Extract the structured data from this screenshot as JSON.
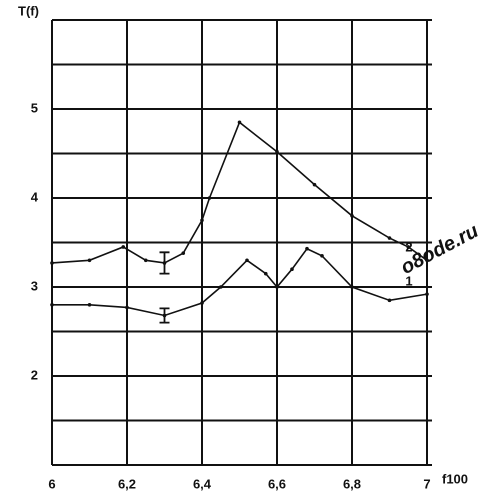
{
  "chart_data": {
    "type": "line",
    "y_label": "T(f)",
    "x_label": "f100",
    "watermark": "o8ode.ru",
    "xlim": [
      6,
      7
    ],
    "ylim": [
      1,
      6
    ],
    "xticks": [
      {
        "value": 6,
        "label": "6"
      },
      {
        "value": 6.2,
        "label": "6,2"
      },
      {
        "value": 6.4,
        "label": "6,4"
      },
      {
        "value": 6.6,
        "label": "6,6"
      },
      {
        "value": 6.8,
        "label": "6,8"
      },
      {
        "value": 7,
        "label": "7"
      }
    ],
    "yticks": [
      2,
      3,
      4,
      5
    ],
    "y_minor_ticks": [
      1.5,
      2.5,
      3.5,
      4.5,
      5.5,
      6
    ],
    "grid": true,
    "series": [
      {
        "name": "1",
        "color": "#111111",
        "x": [
          6,
          6.1,
          6.2,
          6.3,
          6.4,
          6.45,
          6.52,
          6.57,
          6.6,
          6.64,
          6.68,
          6.72,
          6.8,
          6.9,
          7
        ],
        "values": [
          2.8,
          2.8,
          2.77,
          2.68,
          2.82,
          3.0,
          3.3,
          3.15,
          3.0,
          3.2,
          3.43,
          3.35,
          3.0,
          2.85,
          2.92
        ],
        "errors": [
          null,
          null,
          null,
          0.08,
          null,
          null,
          null,
          null,
          null,
          null,
          null,
          null,
          null,
          null,
          null
        ]
      },
      {
        "name": "2",
        "color": "#111111",
        "x": [
          6,
          6.1,
          6.19,
          6.25,
          6.3,
          6.35,
          6.4,
          6.42,
          6.5,
          6.6,
          6.7,
          6.8,
          6.9,
          6.95,
          7
        ],
        "values": [
          3.27,
          3.3,
          3.45,
          3.3,
          3.27,
          3.38,
          3.75,
          4.0,
          4.85,
          4.52,
          4.15,
          3.8,
          3.55,
          3.45,
          3.3
        ],
        "errors": [
          null,
          null,
          null,
          null,
          0.12,
          null,
          null,
          null,
          null,
          null,
          null,
          null,
          null,
          null,
          null
        ]
      }
    ]
  }
}
